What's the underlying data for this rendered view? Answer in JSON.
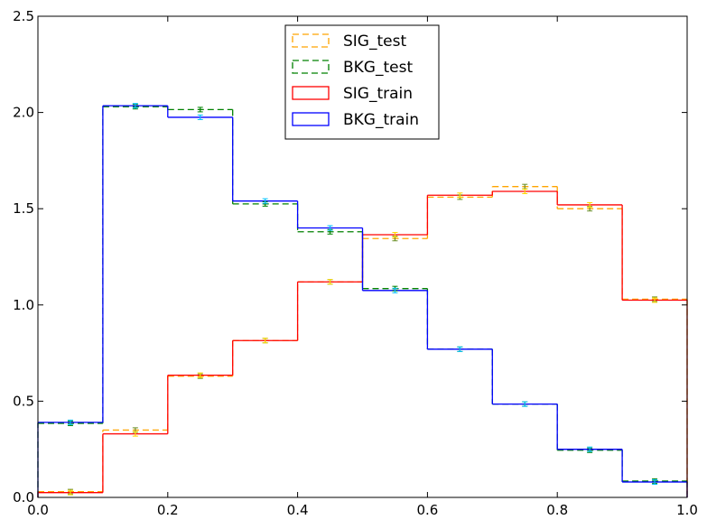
{
  "chart_data": {
    "type": "histogram",
    "title": "",
    "xlabel": "",
    "ylabel": "",
    "xlim": [
      0.0,
      1.0
    ],
    "ylim": [
      0.0,
      2.5
    ],
    "grid": false,
    "legend_position": "upper-center",
    "xticks": [
      "0.0",
      "0.2",
      "0.4",
      "0.6",
      "0.8",
      "1.0"
    ],
    "yticks": [
      "0.0",
      "0.5",
      "1.0",
      "1.5",
      "2.0",
      "2.5"
    ],
    "bin_edges": [
      0.0,
      0.1,
      0.2,
      0.3,
      0.4,
      0.5,
      0.6,
      0.7,
      0.8,
      0.9,
      1.0
    ],
    "series": [
      {
        "name": "SIG_test",
        "style": "dashed",
        "color": "#ffa500",
        "errorbar_color": "#6b8e23",
        "values": [
          0.03,
          0.35,
          0.63,
          0.815,
          1.12,
          1.345,
          1.56,
          1.615,
          1.5,
          1.03
        ]
      },
      {
        "name": "BKG_test",
        "style": "dashed",
        "color": "#008000",
        "errorbar_color": "#008000",
        "values": [
          0.385,
          2.03,
          2.015,
          1.525,
          1.38,
          1.085,
          0.77,
          0.485,
          0.245,
          0.085
        ]
      },
      {
        "name": "SIG_train",
        "style": "solid",
        "color": "#ff0000",
        "errorbar_color": "#ffd700",
        "values": [
          0.025,
          0.33,
          0.635,
          0.815,
          1.12,
          1.365,
          1.57,
          1.59,
          1.52,
          1.025
        ]
      },
      {
        "name": "BKG_train",
        "style": "solid",
        "color": "#0000ff",
        "errorbar_color": "#00bfff",
        "values": [
          0.39,
          2.035,
          1.975,
          1.54,
          1.4,
          1.075,
          0.77,
          0.485,
          0.25,
          0.08
        ]
      }
    ]
  }
}
